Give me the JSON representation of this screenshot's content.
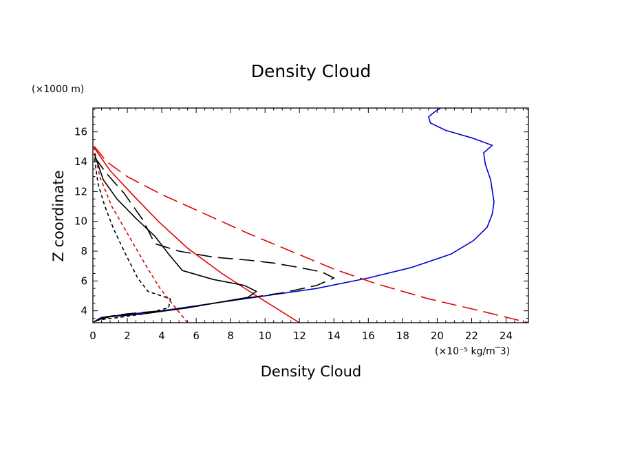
{
  "chart_data": {
    "type": "line",
    "title": "Density Cloud",
    "xlabel": "Density Cloud",
    "ylabel": "Z coordinate",
    "x_unit": "(×10⁻⁵ kg/m‾3)",
    "y_unit": "(×1000 m)",
    "xlim": [
      0,
      25.3
    ],
    "ylim": [
      3.2,
      17.6
    ],
    "x_ticks": [
      0,
      2,
      4,
      6,
      8,
      10,
      12,
      14,
      16,
      18,
      20,
      22,
      24
    ],
    "y_ticks": [
      4,
      6,
      8,
      10,
      12,
      14,
      16
    ],
    "grid": false,
    "colors": {
      "red": "#e00000",
      "black": "#000000",
      "blue": "#0000d0"
    },
    "series": [
      {
        "color": "blue",
        "style": "solid",
        "points": [
          [
            20.2,
            17.6
          ],
          [
            19.8,
            17.3
          ],
          [
            19.5,
            17.0
          ],
          [
            19.6,
            16.6
          ],
          [
            20.5,
            16.1
          ],
          [
            22.0,
            15.6
          ],
          [
            23.2,
            15.1
          ],
          [
            22.7,
            14.6
          ],
          [
            22.8,
            13.8
          ],
          [
            23.1,
            12.8
          ],
          [
            23.3,
            11.3
          ],
          [
            23.2,
            10.5
          ],
          [
            22.9,
            9.6
          ],
          [
            22.1,
            8.7
          ],
          [
            20.8,
            7.8
          ],
          [
            18.5,
            6.9
          ],
          [
            16.0,
            6.2
          ],
          [
            13.0,
            5.5
          ],
          [
            10.0,
            5.0
          ],
          [
            7.0,
            4.5
          ],
          [
            4.0,
            4.0
          ],
          [
            1.5,
            3.7
          ],
          [
            0.4,
            3.5
          ],
          [
            0.05,
            3.25
          ]
        ]
      },
      {
        "color": "red",
        "style": "long-dash",
        "points": [
          [
            0.1,
            15.0
          ],
          [
            0.8,
            14.0
          ],
          [
            2.0,
            13.0
          ],
          [
            4.0,
            11.8
          ],
          [
            6.5,
            10.5
          ],
          [
            9.0,
            9.2
          ],
          [
            11.5,
            8.0
          ],
          [
            14.0,
            6.8
          ],
          [
            16.5,
            5.8
          ],
          [
            19.5,
            4.8
          ],
          [
            22.5,
            4.0
          ],
          [
            25.3,
            3.2
          ]
        ]
      },
      {
        "color": "red",
        "style": "solid",
        "points": [
          [
            0.1,
            14.9
          ],
          [
            1.0,
            13.4
          ],
          [
            2.3,
            11.8
          ],
          [
            3.8,
            10.0
          ],
          [
            5.5,
            8.2
          ],
          [
            7.5,
            6.5
          ],
          [
            9.5,
            5.0
          ],
          [
            12.0,
            3.2
          ]
        ]
      },
      {
        "color": "red",
        "style": "short-dash",
        "points": [
          [
            0.05,
            15.0
          ],
          [
            0.4,
            13.0
          ],
          [
            1.1,
            11.0
          ],
          [
            2.1,
            9.0
          ],
          [
            3.1,
            7.0
          ],
          [
            3.9,
            5.5
          ],
          [
            4.8,
            4.2
          ],
          [
            5.5,
            3.2
          ]
        ]
      },
      {
        "color": "black",
        "style": "long-dash",
        "points": [
          [
            0.1,
            14.3
          ],
          [
            0.8,
            13.2
          ],
          [
            1.8,
            11.9
          ],
          [
            2.9,
            10.1
          ],
          [
            3.6,
            8.5
          ],
          [
            5.0,
            8.0
          ],
          [
            7.0,
            7.6
          ],
          [
            9.0,
            7.4
          ],
          [
            10.5,
            7.2
          ],
          [
            12.0,
            6.9
          ],
          [
            13.3,
            6.6
          ],
          [
            14.0,
            6.2
          ],
          [
            13.0,
            5.7
          ],
          [
            11.0,
            5.2
          ],
          [
            8.0,
            4.7
          ],
          [
            5.0,
            4.1
          ],
          [
            2.0,
            3.8
          ],
          [
            0.5,
            3.55
          ],
          [
            0.1,
            3.3
          ]
        ]
      },
      {
        "color": "black",
        "style": "solid",
        "points": [
          [
            0.1,
            14.5
          ],
          [
            0.6,
            12.8
          ],
          [
            1.4,
            11.5
          ],
          [
            2.5,
            10.2
          ],
          [
            3.6,
            9.0
          ],
          [
            4.4,
            7.8
          ],
          [
            5.2,
            6.7
          ],
          [
            7.0,
            6.1
          ],
          [
            8.8,
            5.7
          ],
          [
            9.5,
            5.3
          ],
          [
            9.0,
            4.9
          ],
          [
            7.5,
            4.6
          ],
          [
            5.5,
            4.2
          ],
          [
            3.0,
            3.8
          ],
          [
            1.0,
            3.6
          ],
          [
            0.3,
            3.4
          ],
          [
            0.05,
            3.25
          ]
        ]
      },
      {
        "color": "black",
        "style": "short-dash",
        "points": [
          [
            0.1,
            14.2
          ],
          [
            0.3,
            12.5
          ],
          [
            0.7,
            11.0
          ],
          [
            1.2,
            9.5
          ],
          [
            1.9,
            7.8
          ],
          [
            2.6,
            6.2
          ],
          [
            3.2,
            5.3
          ],
          [
            4.5,
            4.8
          ],
          [
            4.4,
            4.2
          ],
          [
            3.0,
            3.8
          ],
          [
            1.5,
            3.55
          ],
          [
            0.4,
            3.4
          ],
          [
            0.05,
            3.25
          ]
        ]
      }
    ]
  }
}
